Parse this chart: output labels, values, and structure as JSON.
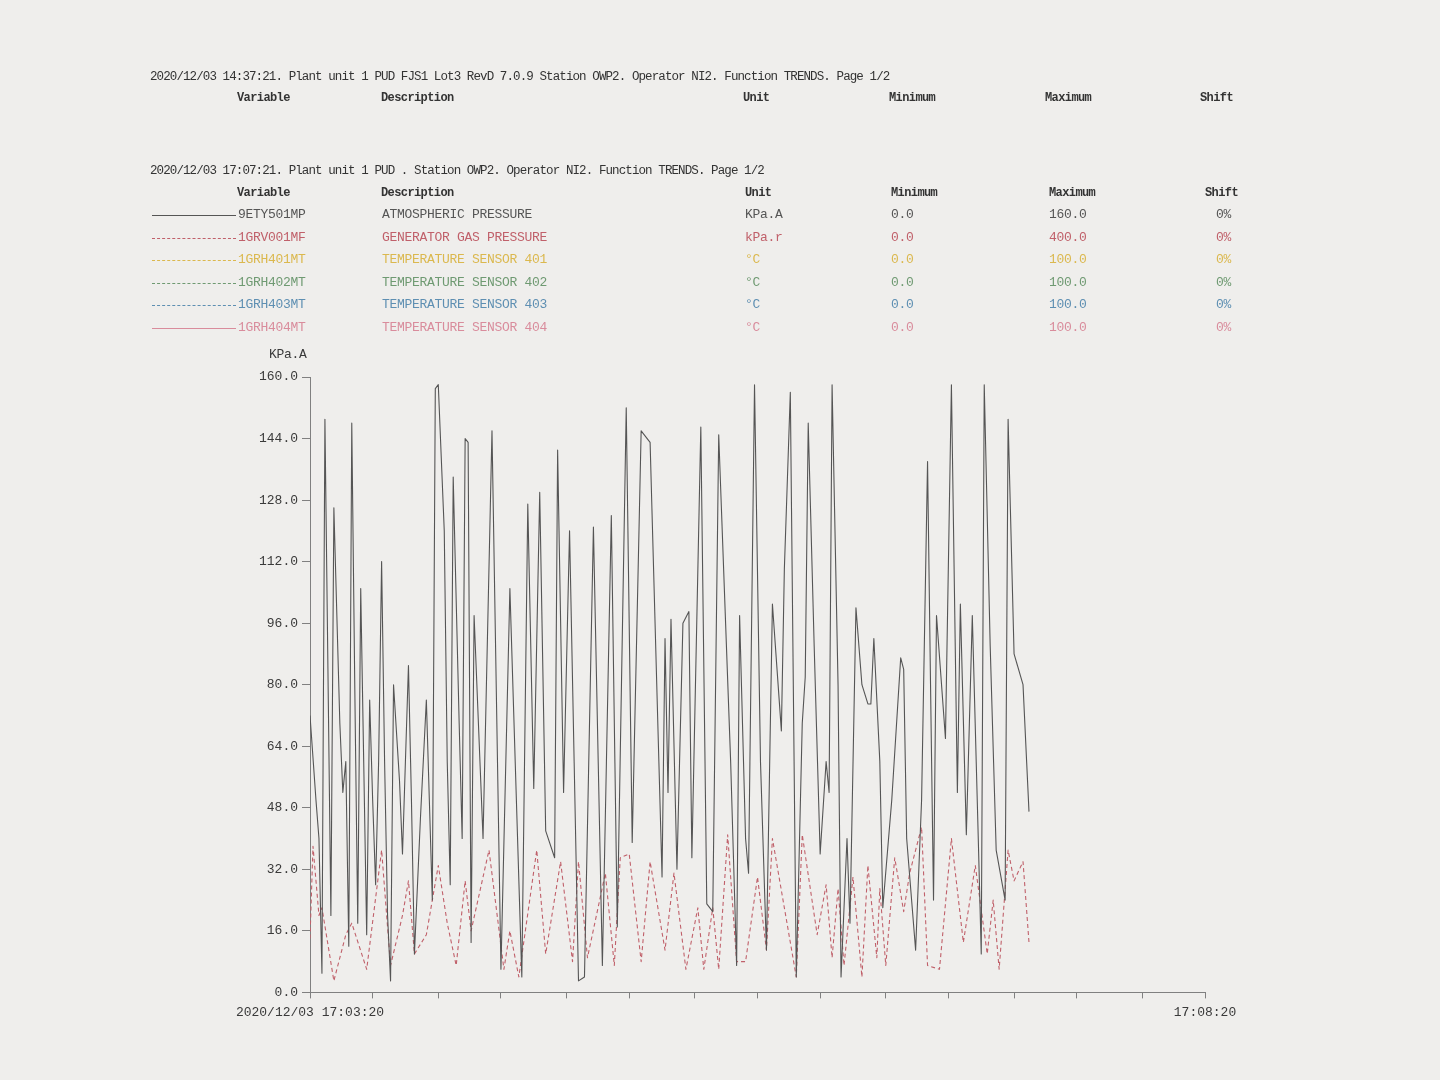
{
  "chart_data": {
    "type": "line",
    "title": "2020/12/03 17:07:21. Plant unit 1 PUD . Station OWP2. Operator NI2. Function TRENDS. Page 1/2",
    "ylabel": "KPa.A",
    "annotations": [
      "2020/12/03 14:37:21. Plant unit 1 PUD FJS1 Lot3 RevD 7.0.9 Station OWP2. Operator NI2. Function TRENDS. Page 1/2",
      "Variable",
      "Description",
      "Unit",
      "Minimum",
      "Maximum",
      "Shift",
      "Variable",
      "Description",
      "Unit",
      "Minimum",
      "Maximum",
      "Shift",
      "ATMOSPHERIC PRESSURE",
      "KPa.A",
      "0.0",
      "160.0",
      "0%",
      "GENERATOR GAS PRESSURE",
      "kPa.r",
      "0.0",
      "400.0",
      "0%",
      "TEMPERATURE SENSOR 401",
      "°C",
      "0.0",
      "100.0",
      "0%",
      "TEMPERATURE SENSOR 402",
      "°C",
      "0.0",
      "100.0",
      "0%",
      "TEMPERATURE SENSOR 403",
      "°C",
      "0.0",
      "100.0",
      "0%",
      "TEMPERATURE SENSOR 404",
      "°C",
      "0.0",
      "100.0",
      "0%"
    ],
    "xlim": [
      "2020-12-03T17:03:20",
      "2020-12-03T17:08:20"
    ],
    "xticks": [
      {
        "value": "2020-12-03T17:03:20",
        "label": "2020/12/03 17:03:20"
      },
      {
        "value": "2020-12-03T17:03:41",
        "label": null
      },
      {
        "value": "2020-12-03T17:04:03",
        "label": null
      },
      {
        "value": "2020-12-03T17:04:24",
        "label": null
      },
      {
        "value": "2020-12-03T17:04:46",
        "label": null
      },
      {
        "value": "2020-12-03T17:05:07",
        "label": null
      },
      {
        "value": "2020-12-03T17:05:29",
        "label": null
      },
      {
        "value": "2020-12-03T17:05:50",
        "label": null
      },
      {
        "value": "2020-12-03T17:06:11",
        "label": null
      },
      {
        "value": "2020-12-03T17:06:33",
        "label": null
      },
      {
        "value": "2020-12-03T17:06:54",
        "label": null
      },
      {
        "value": "2020-12-03T17:07:16",
        "label": null
      },
      {
        "value": "2020-12-03T17:07:37",
        "label": null
      },
      {
        "value": "2020-12-03T17:07:59",
        "label": null
      },
      {
        "value": "2020-12-03T17:08:20",
        "label": "17:08:20"
      }
    ],
    "ylim": [
      0,
      160
    ],
    "yticks": [
      {
        "value": 0,
        "label": "0.0"
      },
      {
        "value": 16,
        "label": "16.0"
      },
      {
        "value": 32,
        "label": "32.0"
      },
      {
        "value": 48,
        "label": "48.0"
      },
      {
        "value": 64,
        "label": "64.0"
      },
      {
        "value": 80,
        "label": "80.0"
      },
      {
        "value": 96,
        "label": "96.0"
      },
      {
        "value": 112,
        "label": "112.0"
      },
      {
        "value": 128,
        "label": "128.0"
      },
      {
        "value": 144,
        "label": "144.0"
      },
      {
        "value": 160,
        "label": "160.0"
      }
    ],
    "legend": "top",
    "marker": "none",
    "series": [
      {
        "name": "9ETY501MP",
        "color": "#555555",
        "line_style": "solid",
        "x": [
          "2020-12-03T17:03:20",
          "2020-12-03T17:03:22",
          "2020-12-03T17:03:23",
          "2020-12-03T17:03:24",
          "2020-12-03T17:03:25",
          "2020-12-03T17:03:27",
          "2020-12-03T17:03:28",
          "2020-12-03T17:03:30",
          "2020-12-03T17:03:31",
          "2020-12-03T17:03:32",
          "2020-12-03T17:03:33",
          "2020-12-03T17:03:34",
          "2020-12-03T17:03:35",
          "2020-12-03T17:03:36",
          "2020-12-03T17:03:37",
          "2020-12-03T17:03:38",
          "2020-12-03T17:03:39",
          "2020-12-03T17:03:40",
          "2020-12-03T17:03:41",
          "2020-12-03T17:03:42",
          "2020-12-03T17:03:43",
          "2020-12-03T17:03:44",
          "2020-12-03T17:03:45",
          "2020-12-03T17:03:46",
          "2020-12-03T17:03:47",
          "2020-12-03T17:03:48",
          "2020-12-03T17:03:50",
          "2020-12-03T17:03:51",
          "2020-12-03T17:03:53",
          "2020-12-03T17:03:54",
          "2020-12-03T17:03:55",
          "2020-12-03T17:03:57",
          "2020-12-03T17:03:59",
          "2020-12-03T17:04:00",
          "2020-12-03T17:04:01",
          "2020-12-03T17:04:02",
          "2020-12-03T17:04:03",
          "2020-12-03T17:04:05",
          "2020-12-03T17:04:06",
          "2020-12-03T17:04:07",
          "2020-12-03T17:04:08",
          "2020-12-03T17:04:10",
          "2020-12-03T17:04:11",
          "2020-12-03T17:04:12",
          "2020-12-03T17:04:13",
          "2020-12-03T17:04:14",
          "2020-12-03T17:04:15",
          "2020-12-03T17:04:18",
          "2020-12-03T17:04:21",
          "2020-12-03T17:04:24",
          "2020-12-03T17:04:27",
          "2020-12-03T17:04:31",
          "2020-12-03T17:04:33",
          "2020-12-03T17:04:35",
          "2020-12-03T17:04:37",
          "2020-12-03T17:04:39",
          "2020-12-03T17:04:42",
          "2020-12-03T17:04:43",
          "2020-12-03T17:04:45",
          "2020-12-03T17:04:47",
          "2020-12-03T17:04:50",
          "2020-12-03T17:04:52",
          "2020-12-03T17:04:55",
          "2020-12-03T17:04:58",
          "2020-12-03T17:05:01",
          "2020-12-03T17:05:03",
          "2020-12-03T17:05:06",
          "2020-12-03T17:05:08",
          "2020-12-03T17:05:11",
          "2020-12-03T17:05:14",
          "2020-12-03T17:05:18",
          "2020-12-03T17:05:19",
          "2020-12-03T17:05:20",
          "2020-12-03T17:05:21",
          "2020-12-03T17:05:23",
          "2020-12-03T17:05:25",
          "2020-12-03T17:05:27",
          "2020-12-03T17:05:28",
          "2020-12-03T17:05:31",
          "2020-12-03T17:05:33",
          "2020-12-03T17:05:35",
          "2020-12-03T17:05:37",
          "2020-12-03T17:05:41",
          "2020-12-03T17:05:43",
          "2020-12-03T17:05:44",
          "2020-12-03T17:05:46",
          "2020-12-03T17:05:47",
          "2020-12-03T17:05:49",
          "2020-12-03T17:05:51",
          "2020-12-03T17:05:53",
          "2020-12-03T17:05:55",
          "2020-12-03T17:05:58",
          "2020-12-03T17:05:59",
          "2020-12-03T17:06:01",
          "2020-12-03T17:06:03",
          "2020-12-03T17:06:05",
          "2020-12-03T17:06:06",
          "2020-12-03T17:06:07",
          "2020-12-03T17:06:09",
          "2020-12-03T17:06:11",
          "2020-12-03T17:06:13",
          "2020-12-03T17:06:14",
          "2020-12-03T17:06:15",
          "2020-12-03T17:06:17",
          "2020-12-03T17:06:18",
          "2020-12-03T17:06:20",
          "2020-12-03T17:06:21",
          "2020-12-03T17:06:23",
          "2020-12-03T17:06:25",
          "2020-12-03T17:06:27",
          "2020-12-03T17:06:28",
          "2020-12-03T17:06:29",
          "2020-12-03T17:06:31",
          "2020-12-03T17:06:32",
          "2020-12-03T17:06:35",
          "2020-12-03T17:06:38",
          "2020-12-03T17:06:39",
          "2020-12-03T17:06:40",
          "2020-12-03T17:06:43",
          "2020-12-03T17:06:45",
          "2020-12-03T17:06:47",
          "2020-12-03T17:06:48",
          "2020-12-03T17:06:49",
          "2020-12-03T17:06:50",
          "2020-12-03T17:06:53",
          "2020-12-03T17:06:55",
          "2020-12-03T17:06:57",
          "2020-12-03T17:06:58",
          "2020-12-03T17:07:00",
          "2020-12-03T17:07:02",
          "2020-12-03T17:07:04",
          "2020-12-03T17:07:05",
          "2020-12-03T17:07:06",
          "2020-12-03T17:07:08",
          "2020-12-03T17:07:10",
          "2020-12-03T17:07:13",
          "2020-12-03T17:07:14",
          "2020-12-03T17:07:16",
          "2020-12-03T17:07:19",
          "2020-12-03T17:07:21"
        ],
        "values": [
          72,
          50,
          40,
          5,
          149,
          20,
          126,
          70,
          52,
          60,
          12,
          148,
          80,
          18,
          105,
          60,
          15,
          76,
          50,
          28,
          60,
          112,
          60,
          20,
          3,
          80,
          55,
          36,
          85,
          50,
          10,
          45,
          76,
          50,
          24,
          157,
          158,
          120,
          60,
          28,
          134,
          70,
          40,
          144,
          143,
          13,
          98,
          40,
          146,
          6,
          105,
          4,
          127,
          53,
          130,
          42,
          35,
          141,
          52,
          120,
          3,
          4,
          121,
          7,
          124,
          17,
          152,
          39,
          146,
          143,
          30,
          92,
          52,
          97,
          32,
          96,
          99,
          35,
          147,
          23,
          21,
          145,
          60,
          7,
          98,
          40,
          31,
          158,
          60,
          11,
          101,
          68,
          110,
          156,
          4,
          70,
          82,
          148,
          90,
          36,
          60,
          52,
          158,
          80,
          4,
          40,
          18,
          100,
          80,
          75,
          75,
          92,
          60,
          22,
          50,
          87,
          84,
          40,
          11,
          50,
          138,
          80,
          24,
          98,
          66,
          158,
          52,
          101,
          41,
          98,
          40,
          10,
          158,
          90,
          37,
          24,
          149,
          88,
          80,
          47
        ]
      },
      {
        "name": "1GRV001MF",
        "color": "#c0606a",
        "line_style": "dashed",
        "x": [
          "2020-12-03T17:03:20",
          "2020-12-03T17:03:21",
          "2020-12-03T17:03:23",
          "2020-12-03T17:03:24",
          "2020-12-03T17:03:28",
          "2020-12-03T17:03:32",
          "2020-12-03T17:03:34",
          "2020-12-03T17:03:39",
          "2020-12-03T17:03:44",
          "2020-12-03T17:03:47",
          "2020-12-03T17:03:51",
          "2020-12-03T17:03:53",
          "2020-12-03T17:03:55",
          "2020-12-03T17:03:59",
          "2020-12-03T17:04:03",
          "2020-12-03T17:04:06",
          "2020-12-03T17:04:09",
          "2020-12-03T17:04:12",
          "2020-12-03T17:04:14",
          "2020-12-03T17:04:20",
          "2020-12-03T17:04:25",
          "2020-12-03T17:04:27",
          "2020-12-03T17:04:30",
          "2020-12-03T17:04:36",
          "2020-12-03T17:04:39",
          "2020-12-03T17:04:44",
          "2020-12-03T17:04:48",
          "2020-12-03T17:04:50",
          "2020-12-03T17:04:53",
          "2020-12-03T17:04:56",
          "2020-12-03T17:04:59",
          "2020-12-03T17:05:02",
          "2020-12-03T17:05:04",
          "2020-12-03T17:05:07",
          "2020-12-03T17:05:11",
          "2020-12-03T17:05:14",
          "2020-12-03T17:05:19",
          "2020-12-03T17:05:22",
          "2020-12-03T17:05:26",
          "2020-12-03T17:05:30",
          "2020-12-03T17:05:32",
          "2020-12-03T17:05:35",
          "2020-12-03T17:05:37",
          "2020-12-03T17:05:40",
          "2020-12-03T17:05:43",
          "2020-12-03T17:05:46",
          "2020-12-03T17:05:50",
          "2020-12-03T17:05:53",
          "2020-12-03T17:05:55",
          "2020-12-03T17:05:59",
          "2020-12-03T17:06:03",
          "2020-12-03T17:06:05",
          "2020-12-03T17:06:10",
          "2020-12-03T17:06:13",
          "2020-12-03T17:06:15",
          "2020-12-03T17:06:17",
          "2020-12-03T17:06:19",
          "2020-12-03T17:06:22",
          "2020-12-03T17:06:25",
          "2020-12-03T17:06:27",
          "2020-12-03T17:06:30",
          "2020-12-03T17:06:31",
          "2020-12-03T17:06:33",
          "2020-12-03T17:06:36",
          "2020-12-03T17:06:39",
          "2020-12-03T17:06:41",
          "2020-12-03T17:06:45",
          "2020-12-03T17:06:47",
          "2020-12-03T17:06:51",
          "2020-12-03T17:06:55",
          "2020-12-03T17:06:59",
          "2020-12-03T17:07:03",
          "2020-12-03T17:07:07",
          "2020-12-03T17:07:09",
          "2020-12-03T17:07:11",
          "2020-12-03T17:07:14",
          "2020-12-03T17:07:16",
          "2020-12-03T17:07:19",
          "2020-12-03T17:07:21"
        ],
        "values": [
          14,
          38,
          20,
          22,
          3,
          15,
          18,
          6,
          37,
          7,
          20,
          29,
          10,
          15,
          33,
          18,
          7,
          29,
          16,
          37,
          6,
          16,
          4,
          37,
          10,
          34,
          8,
          34,
          9,
          20,
          31,
          7,
          35,
          36,
          8,
          34,
          11,
          31,
          6,
          22,
          6,
          22,
          6,
          41,
          8,
          8,
          30,
          11,
          40,
          22,
          4,
          41,
          15,
          28,
          9,
          27,
          7,
          30,
          4,
          33,
          9,
          27,
          7,
          35,
          21,
          31,
          43,
          7,
          6,
          40,
          13,
          33,
          10,
          24,
          6,
          37,
          29,
          34,
          13
        ]
      },
      {
        "name": "1GRH401MT",
        "color": "#dbb84e",
        "line_style": "dashed"
      },
      {
        "name": "1GRH402MT",
        "color": "#6f9a72",
        "line_style": "dashed"
      },
      {
        "name": "1GRH403MT",
        "color": "#5e8fb2",
        "line_style": "dashed"
      },
      {
        "name": "1GRH404MT",
        "color": "#d98c9c",
        "line_style": "solid"
      }
    ]
  }
}
